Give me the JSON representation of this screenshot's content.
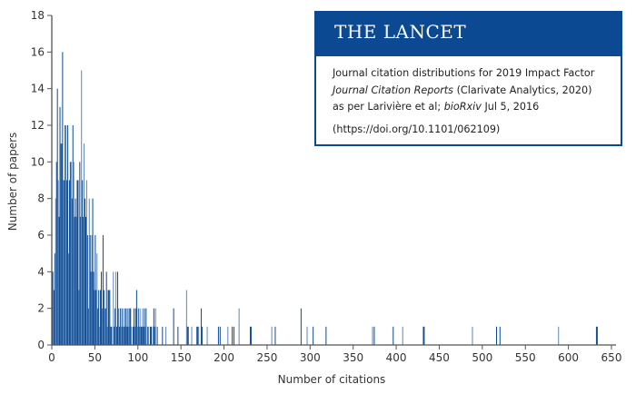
{
  "chart_data": {
    "type": "bar",
    "xlabel": "Number of citations",
    "ylabel": "Number of papers",
    "xlim": [
      0,
      650
    ],
    "ylim": [
      0,
      18
    ],
    "xticks": [
      0,
      50,
      100,
      150,
      200,
      250,
      300,
      350,
      400,
      450,
      500,
      550,
      600,
      650
    ],
    "yticks": [
      0,
      2,
      4,
      6,
      8,
      10,
      12,
      14,
      16,
      18
    ],
    "grid": false,
    "bin_width": 1,
    "bars": [
      [
        0,
        4
      ],
      [
        1,
        4
      ],
      [
        2,
        3
      ],
      [
        3,
        5
      ],
      [
        4,
        8
      ],
      [
        5,
        10
      ],
      [
        6,
        14
      ],
      [
        7,
        9
      ],
      [
        8,
        7
      ],
      [
        9,
        13
      ],
      [
        10,
        11
      ],
      [
        11,
        11
      ],
      [
        12,
        16
      ],
      [
        13,
        9
      ],
      [
        14,
        9
      ],
      [
        15,
        12
      ],
      [
        16,
        12
      ],
      [
        17,
        9
      ],
      [
        18,
        12
      ],
      [
        19,
        5
      ],
      [
        20,
        9
      ],
      [
        21,
        10
      ],
      [
        22,
        10
      ],
      [
        23,
        8
      ],
      [
        24,
        12
      ],
      [
        25,
        10
      ],
      [
        26,
        7
      ],
      [
        27,
        8
      ],
      [
        28,
        7
      ],
      [
        29,
        9
      ],
      [
        30,
        9
      ],
      [
        31,
        3
      ],
      [
        32,
        10
      ],
      [
        33,
        7
      ],
      [
        34,
        15
      ],
      [
        35,
        9
      ],
      [
        36,
        7
      ],
      [
        37,
        11
      ],
      [
        38,
        8
      ],
      [
        39,
        7
      ],
      [
        40,
        9
      ],
      [
        41,
        6
      ],
      [
        42,
        2
      ],
      [
        43,
        8
      ],
      [
        44,
        6
      ],
      [
        45,
        4
      ],
      [
        46,
        6
      ],
      [
        47,
        8
      ],
      [
        48,
        4
      ],
      [
        49,
        3
      ],
      [
        50,
        6
      ],
      [
        51,
        3
      ],
      [
        52,
        5
      ],
      [
        53,
        2
      ],
      [
        54,
        3
      ],
      [
        55,
        1
      ],
      [
        56,
        3
      ],
      [
        57,
        4
      ],
      [
        58,
        2
      ],
      [
        59,
        6
      ],
      [
        60,
        3
      ],
      [
        61,
        2
      ],
      [
        62,
        2
      ],
      [
        63,
        4
      ],
      [
        64,
        1
      ],
      [
        65,
        3
      ],
      [
        66,
        3
      ],
      [
        67,
        3
      ],
      [
        68,
        1
      ],
      [
        69,
        1
      ],
      [
        71,
        4
      ],
      [
        72,
        1
      ],
      [
        73,
        2
      ],
      [
        74,
        4
      ],
      [
        75,
        1
      ],
      [
        76,
        4
      ],
      [
        77,
        2
      ],
      [
        78,
        1
      ],
      [
        79,
        2
      ],
      [
        80,
        1
      ],
      [
        81,
        2
      ],
      [
        82,
        1
      ],
      [
        83,
        2
      ],
      [
        84,
        1
      ],
      [
        85,
        2
      ],
      [
        86,
        2
      ],
      [
        87,
        1
      ],
      [
        88,
        2
      ],
      [
        89,
        1
      ],
      [
        90,
        2
      ],
      [
        91,
        2
      ],
      [
        92,
        1
      ],
      [
        94,
        1
      ],
      [
        95,
        2
      ],
      [
        96,
        1
      ],
      [
        97,
        2
      ],
      [
        98,
        3
      ],
      [
        99,
        1
      ],
      [
        100,
        2
      ],
      [
        101,
        1
      ],
      [
        102,
        2
      ],
      [
        103,
        1
      ],
      [
        104,
        1
      ],
      [
        105,
        2
      ],
      [
        106,
        1
      ],
      [
        107,
        2
      ],
      [
        108,
        1
      ],
      [
        109,
        2
      ],
      [
        111,
        1
      ],
      [
        112,
        1
      ],
      [
        114,
        1
      ],
      [
        115,
        1
      ],
      [
        117,
        1
      ],
      [
        118,
        2
      ],
      [
        119,
        1
      ],
      [
        120,
        2
      ],
      [
        122,
        1
      ],
      [
        128,
        1
      ],
      [
        132,
        1
      ],
      [
        141,
        2
      ],
      [
        146,
        1
      ],
      [
        156,
        3
      ],
      [
        157,
        1
      ],
      [
        158,
        1
      ],
      [
        162,
        1
      ],
      [
        168,
        1
      ],
      [
        169,
        1
      ],
      [
        170,
        1
      ],
      [
        173,
        2
      ],
      [
        174,
        1
      ],
      [
        180,
        1
      ],
      [
        193,
        1
      ],
      [
        195,
        1
      ],
      [
        204,
        1
      ],
      [
        209,
        1
      ],
      [
        211,
        1
      ],
      [
        217,
        2
      ],
      [
        230,
        1
      ],
      [
        231,
        1
      ],
      [
        255,
        1
      ],
      [
        259,
        1
      ],
      [
        289,
        2
      ],
      [
        296,
        1
      ],
      [
        303,
        1
      ],
      [
        318,
        1
      ],
      [
        372,
        1
      ],
      [
        374,
        1
      ],
      [
        396,
        1
      ],
      [
        407,
        1
      ],
      [
        431,
        1
      ],
      [
        432,
        1
      ],
      [
        488,
        1
      ],
      [
        516,
        1
      ],
      [
        520,
        1
      ],
      [
        588,
        1
      ],
      [
        632,
        1
      ],
      [
        633,
        1
      ]
    ],
    "colors": {
      "bar": "#0b4a93",
      "bar_alt": "#5a86bb",
      "axis": "#555555"
    }
  },
  "legend": {
    "title": "THE LANCET",
    "line1": "Journal citation distributions for 2019 Impact Factor",
    "line2_italic": "Journal Citation Reports",
    "line2_rest": " (Clarivate Analytics, 2020)",
    "line3_a": "as per Larivière et al; ",
    "line3_italic": "bioRxiv",
    "line3_b": " Jul 5, 2016",
    "doi": "(https://doi.org/10.1101/062109)"
  }
}
